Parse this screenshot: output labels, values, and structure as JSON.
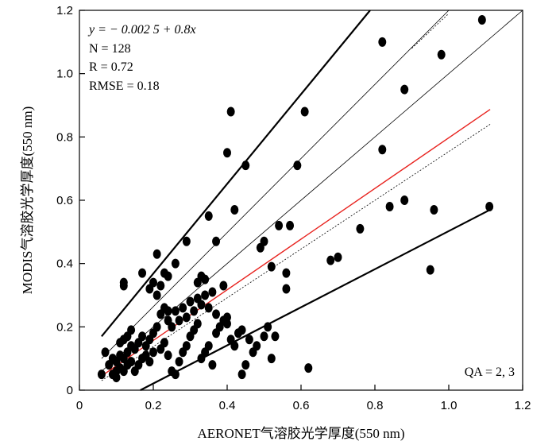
{
  "chart_data": {
    "type": "scatter",
    "xlabel": "AERONET气溶胶光学厚度(550 nm)",
    "ylabel": "MODIS气溶胶光学厚度(550 nm)",
    "xlim": [
      0,
      1.2
    ],
    "ylim": [
      0,
      1.2
    ],
    "xticks": [
      "0",
      "0.2",
      "0.4",
      "0.6",
      "0.8",
      "1.0",
      "1.2"
    ],
    "yticks": [
      "0",
      "0.2",
      "0.4",
      "0.6",
      "0.8",
      "1.0",
      "1.2"
    ],
    "grid": false,
    "annotations": {
      "equation": "y = −  0.002 5 + 0.8x",
      "n": "N = 128",
      "r": "R = 0.72",
      "rmse": "RMSE = 0.18",
      "qa": "QA = 2, 3"
    },
    "colors": {
      "points": "#000000",
      "regression_line": "#e8231f",
      "envelope_lines": "#000000"
    },
    "reference_lines": [
      {
        "role": "upper-envelope",
        "style": "thick",
        "x1": 0.06,
        "y1": 0.17,
        "x2": 0.787,
        "y2": 1.2
      },
      {
        "role": "lower-envelope",
        "style": "thick",
        "x1": 0.165,
        "y1": 0.0,
        "x2": 1.112,
        "y2": 0.57
      },
      {
        "role": "one-to-one",
        "style": "thin",
        "x1": 0.06,
        "y1": 0.06,
        "x2": 1.2,
        "y2": 1.2
      },
      {
        "role": "upper-thin",
        "style": "thin",
        "x1": 0.06,
        "y1": 0.1,
        "x2": 1.0,
        "y2": 1.2
      },
      {
        "role": "upper-dotted",
        "style": "dotted",
        "x1": 0.9,
        "y1": 1.08,
        "x2": 1.0,
        "y2": 1.19
      },
      {
        "role": "lower-dotted",
        "style": "dotted",
        "x1": 0.06,
        "y1": 0.03,
        "x2": 1.112,
        "y2": 0.84
      },
      {
        "role": "regression",
        "style": "red",
        "x1": 0.06,
        "y1": 0.045,
        "x2": 1.112,
        "y2": 0.887
      }
    ],
    "points": [
      [
        0.09,
        0.05
      ],
      [
        0.1,
        0.06
      ],
      [
        0.11,
        0.07
      ],
      [
        0.12,
        0.06
      ],
      [
        0.13,
        0.08
      ],
      [
        0.14,
        0.09
      ],
      [
        0.08,
        0.08
      ],
      [
        0.09,
        0.1
      ],
      [
        0.1,
        0.09
      ],
      [
        0.11,
        0.11
      ],
      [
        0.12,
        0.1
      ],
      [
        0.13,
        0.12
      ],
      [
        0.15,
        0.06
      ],
      [
        0.16,
        0.08
      ],
      [
        0.17,
        0.1
      ],
      [
        0.18,
        0.11
      ],
      [
        0.19,
        0.09
      ],
      [
        0.2,
        0.12
      ],
      [
        0.14,
        0.14
      ],
      [
        0.15,
        0.13
      ],
      [
        0.16,
        0.15
      ],
      [
        0.17,
        0.17
      ],
      [
        0.18,
        0.14
      ],
      [
        0.19,
        0.16
      ],
      [
        0.11,
        0.15
      ],
      [
        0.12,
        0.16
      ],
      [
        0.13,
        0.17
      ],
      [
        0.14,
        0.19
      ],
      [
        0.2,
        0.18
      ],
      [
        0.21,
        0.2
      ],
      [
        0.22,
        0.13
      ],
      [
        0.23,
        0.15
      ],
      [
        0.24,
        0.11
      ],
      [
        0.25,
        0.06
      ],
      [
        0.26,
        0.05
      ],
      [
        0.27,
        0.09
      ],
      [
        0.28,
        0.12
      ],
      [
        0.29,
        0.14
      ],
      [
        0.3,
        0.17
      ],
      [
        0.31,
        0.19
      ],
      [
        0.32,
        0.21
      ],
      [
        0.33,
        0.1
      ],
      [
        0.34,
        0.12
      ],
      [
        0.35,
        0.14
      ],
      [
        0.36,
        0.08
      ],
      [
        0.37,
        0.18
      ],
      [
        0.38,
        0.2
      ],
      [
        0.39,
        0.22
      ],
      [
        0.22,
        0.24
      ],
      [
        0.23,
        0.26
      ],
      [
        0.24,
        0.22
      ],
      [
        0.25,
        0.2
      ],
      [
        0.26,
        0.25
      ],
      [
        0.27,
        0.22
      ],
      [
        0.28,
        0.26
      ],
      [
        0.29,
        0.23
      ],
      [
        0.3,
        0.28
      ],
      [
        0.31,
        0.25
      ],
      [
        0.32,
        0.29
      ],
      [
        0.33,
        0.27
      ],
      [
        0.34,
        0.3
      ],
      [
        0.35,
        0.26
      ],
      [
        0.36,
        0.31
      ],
      [
        0.37,
        0.24
      ],
      [
        0.21,
        0.3
      ],
      [
        0.22,
        0.33
      ],
      [
        0.24,
        0.36
      ],
      [
        0.26,
        0.4
      ],
      [
        0.2,
        0.34
      ],
      [
        0.19,
        0.32
      ],
      [
        0.32,
        0.34
      ],
      [
        0.33,
        0.36
      ],
      [
        0.34,
        0.35
      ],
      [
        0.35,
        0.55
      ],
      [
        0.37,
        0.47
      ],
      [
        0.29,
        0.47
      ],
      [
        0.21,
        0.43
      ],
      [
        0.23,
        0.37
      ],
      [
        0.17,
        0.37
      ],
      [
        0.12,
        0.33
      ],
      [
        0.12,
        0.34
      ],
      [
        0.07,
        0.12
      ],
      [
        0.06,
        0.05
      ],
      [
        0.1,
        0.04
      ],
      [
        0.4,
        0.21
      ],
      [
        0.4,
        0.23
      ],
      [
        0.41,
        0.16
      ],
      [
        0.42,
        0.14
      ],
      [
        0.43,
        0.18
      ],
      [
        0.44,
        0.19
      ],
      [
        0.45,
        0.08
      ],
      [
        0.44,
        0.05
      ],
      [
        0.46,
        0.16
      ],
      [
        0.47,
        0.12
      ],
      [
        0.48,
        0.14
      ],
      [
        0.5,
        0.17
      ],
      [
        0.51,
        0.2
      ],
      [
        0.52,
        0.1
      ],
      [
        0.53,
        0.17
      ],
      [
        0.39,
        0.33
      ],
      [
        0.42,
        0.57
      ],
      [
        0.45,
        0.71
      ],
      [
        0.49,
        0.45
      ],
      [
        0.5,
        0.47
      ],
      [
        0.52,
        0.39
      ],
      [
        0.54,
        0.52
      ],
      [
        0.56,
        0.37
      ],
      [
        0.56,
        0.32
      ],
      [
        0.57,
        0.52
      ],
      [
        0.59,
        0.71
      ],
      [
        0.62,
        0.07
      ],
      [
        0.41,
        0.88
      ],
      [
        0.4,
        0.75
      ],
      [
        0.61,
        0.88
      ],
      [
        0.68,
        0.41
      ],
      [
        0.7,
        0.42
      ],
      [
        0.76,
        0.51
      ],
      [
        0.82,
        0.76
      ],
      [
        0.82,
        1.1
      ],
      [
        0.84,
        0.58
      ],
      [
        0.88,
        0.6
      ],
      [
        0.88,
        0.95
      ],
      [
        0.95,
        0.38
      ],
      [
        0.96,
        0.57
      ],
      [
        0.98,
        1.06
      ],
      [
        1.09,
        1.17
      ],
      [
        1.11,
        0.58
      ],
      [
        0.24,
        0.25
      ]
    ]
  }
}
